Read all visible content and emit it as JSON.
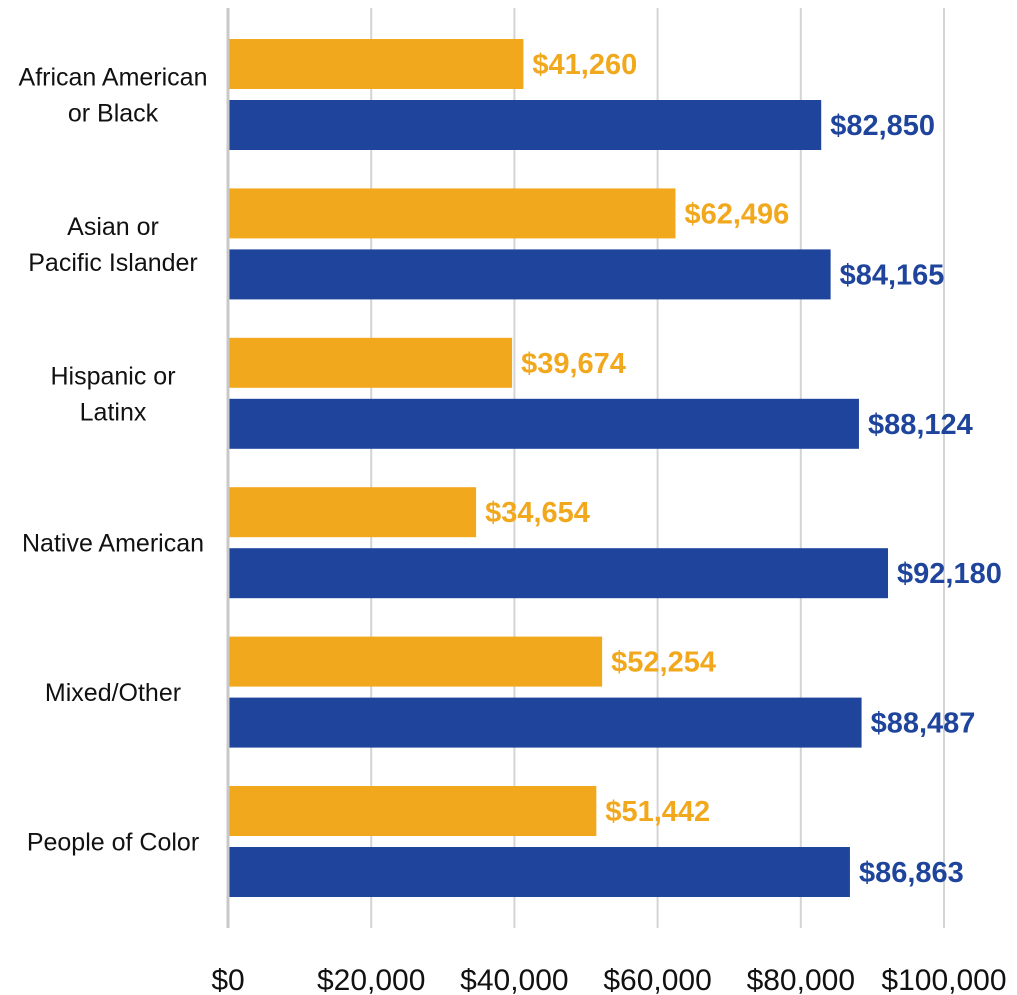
{
  "chart_data": {
    "type": "bar",
    "orientation": "horizontal",
    "categories": [
      [
        "African American",
        "or Black"
      ],
      [
        "Asian or",
        "Pacific Islander"
      ],
      [
        "Hispanic or",
        "Latinx"
      ],
      [
        "Native American"
      ],
      [
        "Mixed/Other"
      ],
      [
        "People of Color"
      ]
    ],
    "series": [
      {
        "color": "#F2A81D",
        "values": [
          41260,
          62496,
          39674,
          34654,
          52254,
          51442
        ],
        "value_labels": [
          "$41,260",
          "$62,496",
          "$39,674",
          "$34,654",
          "$52,254",
          "$51,442"
        ]
      },
      {
        "color": "#1F449C",
        "values": [
          82850,
          84165,
          88124,
          92180,
          88487,
          86863
        ],
        "value_labels": [
          "$82,850",
          "$84,165",
          "$88,124",
          "$92,180",
          "$88,487",
          "$86,863"
        ]
      }
    ],
    "xlim": [
      0,
      100000
    ],
    "x_ticks": [
      0,
      20000,
      40000,
      60000,
      80000,
      100000
    ],
    "x_tick_labels": [
      "$0",
      "$20,000",
      "$40,000",
      "$60,000",
      "$80,000",
      "$100,000"
    ],
    "grid": true,
    "legend": "none"
  }
}
